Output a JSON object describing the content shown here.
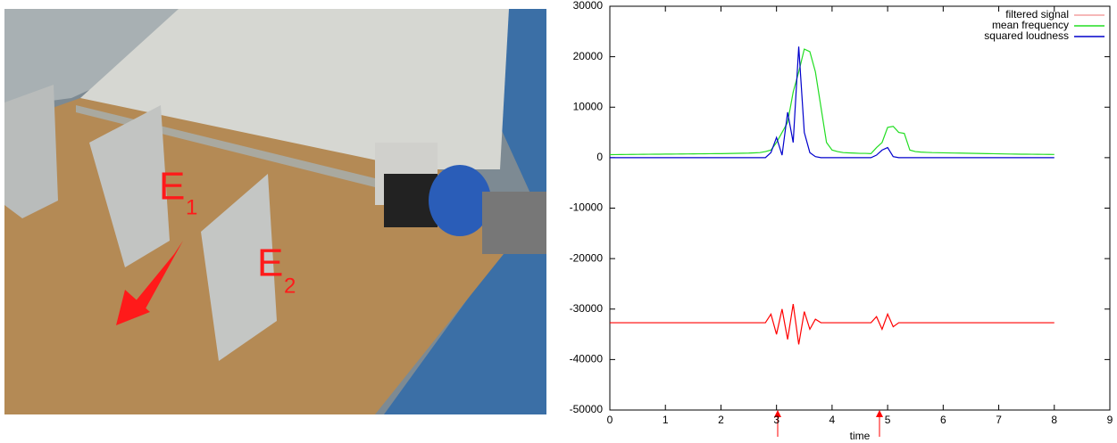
{
  "photo_labels": [
    {
      "letter": "E",
      "subscript": "1"
    },
    {
      "letter": "E",
      "subscript": "2"
    }
  ],
  "chart_data": {
    "type": "line",
    "xlabel": "time",
    "x": [
      0,
      0.1,
      0.2,
      0.3,
      0.4,
      0.5,
      0.6,
      0.7,
      0.8,
      0.9,
      1,
      1.1,
      1.2,
      1.3,
      1.4,
      1.5,
      1.6,
      1.7,
      1.8,
      1.9,
      2,
      2.1,
      2.2,
      2.3,
      2.4,
      2.5,
      2.6,
      2.7,
      2.8,
      2.9,
      3,
      3.1,
      3.2,
      3.3,
      3.4,
      3.5,
      3.6,
      3.7,
      3.8,
      3.9,
      4,
      4.1,
      4.2,
      4.3,
      4.4,
      4.5,
      4.6,
      4.7,
      4.8,
      4.9,
      5,
      5.1,
      5.2,
      5.3,
      5.4,
      5.5,
      5.6,
      5.7,
      5.8,
      5.9,
      6,
      6.1,
      6.2,
      6.3,
      6.4,
      6.5,
      6.6,
      6.7,
      6.8,
      6.9,
      7,
      7.1,
      7.2,
      7.3,
      7.4,
      7.5,
      7.6,
      7.7,
      7.8,
      7.9,
      8
    ],
    "series": [
      {
        "name": "filtered signal",
        "color": "#ff0000",
        "legend_color": "#f4a0a0",
        "values": [
          -32700,
          -32700,
          -32700,
          -32700,
          -32700,
          -32700,
          -32700,
          -32700,
          -32700,
          -32700,
          -32700,
          -32700,
          -32700,
          -32700,
          -32700,
          -32700,
          -32700,
          -32700,
          -32700,
          -32700,
          -32700,
          -32700,
          -32700,
          -32700,
          -32700,
          -32700,
          -32700,
          -32700,
          -32700,
          -31000,
          -35000,
          -30000,
          -36000,
          -29000,
          -37000,
          -30500,
          -34000,
          -32000,
          -32700,
          -32700,
          -32700,
          -32700,
          -32700,
          -32700,
          -32700,
          -32700,
          -32700,
          -32700,
          -31500,
          -34000,
          -31000,
          -33500,
          -32700,
          -32700,
          -32700,
          -32700,
          -32700,
          -32700,
          -32700,
          -32700,
          -32700,
          -32700,
          -32700,
          -32700,
          -32700,
          -32700,
          -32700,
          -32700,
          -32700,
          -32700,
          -32700,
          -32700,
          -32700,
          -32700,
          -32700,
          -32700,
          -32700,
          -32700,
          -32700,
          -32700,
          -32700
        ]
      },
      {
        "name": "mean frequency",
        "color": "#22dd22",
        "legend_color": "#22dd22",
        "values": [
          600,
          610,
          620,
          630,
          640,
          650,
          660,
          670,
          680,
          690,
          700,
          710,
          720,
          730,
          740,
          750,
          760,
          770,
          780,
          790,
          800,
          820,
          840,
          860,
          880,
          900,
          950,
          1000,
          1200,
          1500,
          3000,
          5000,
          7000,
          13000,
          17000,
          21500,
          21000,
          17000,
          10000,
          3000,
          1500,
          1200,
          1000,
          950,
          900,
          850,
          850,
          800,
          2000,
          3000,
          6000,
          6200,
          5000,
          4800,
          1500,
          1200,
          1100,
          1050,
          1000,
          980,
          960,
          940,
          920,
          900,
          880,
          860,
          840,
          820,
          800,
          780,
          760,
          740,
          720,
          700,
          690,
          680,
          670,
          660,
          650,
          640,
          630
        ]
      },
      {
        "name": "squared loudness",
        "color": "#0000cc",
        "legend_color": "#0000cc",
        "values": [
          0,
          0,
          0,
          0,
          0,
          0,
          0,
          0,
          0,
          0,
          0,
          0,
          0,
          0,
          0,
          0,
          0,
          0,
          0,
          0,
          0,
          0,
          0,
          0,
          0,
          0,
          0,
          0,
          0,
          1000,
          4000,
          500,
          9000,
          3000,
          22000,
          5000,
          1000,
          200,
          0,
          0,
          0,
          0,
          0,
          0,
          0,
          0,
          0,
          0,
          500,
          1500,
          2000,
          200,
          0,
          0,
          0,
          0,
          0,
          0,
          0,
          0,
          0,
          0,
          0,
          0,
          0,
          0,
          0,
          0,
          0,
          0,
          0,
          0,
          0,
          0,
          0,
          0,
          0,
          0,
          0,
          0,
          0
        ]
      }
    ],
    "xlim": [
      0,
      9
    ],
    "xticks": [
      0,
      1,
      2,
      3,
      4,
      5,
      6,
      7,
      8,
      9
    ],
    "ylim": [
      -50000,
      30000
    ],
    "yticks": [
      -50000,
      -40000,
      -30000,
      -20000,
      -10000,
      0,
      10000,
      20000,
      30000
    ],
    "legend": "upper right"
  }
}
